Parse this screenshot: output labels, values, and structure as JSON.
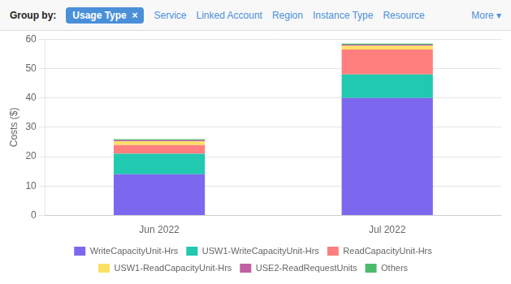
{
  "chart_data": {
    "type": "bar",
    "stacked": true,
    "categories": [
      "Jun 2022",
      "Jul 2022"
    ],
    "series": [
      {
        "name": "WriteCapacityUnit-Hrs",
        "color": "#7b68ee",
        "values": [
          14.0,
          40.0
        ]
      },
      {
        "name": "USW1-WriteCapacityUnit-Hrs",
        "color": "#20c9b0",
        "values": [
          7.0,
          8.0
        ]
      },
      {
        "name": "ReadCapacityUnit-Hrs",
        "color": "#ff7f7f",
        "values": [
          3.0,
          8.5
        ]
      },
      {
        "name": "USW1-ReadCapacityUnit-Hrs",
        "color": "#ffe066",
        "values": [
          1.2,
          1.2
        ]
      },
      {
        "name": "USE2-ReadRequestUnits",
        "color": "#c060a1",
        "values": [
          0.4,
          0.4
        ]
      },
      {
        "name": "Others",
        "color": "#4dbb6e",
        "values": [
          0.4,
          0.4
        ]
      }
    ],
    "ylabel": "Costs ($)",
    "ylim": [
      0,
      60
    ],
    "yticks": [
      0,
      10,
      20,
      30,
      40,
      50,
      60
    ],
    "grid": true,
    "legend": "bottom",
    "annotations": [
      "Group by:",
      "Usage Type  ×",
      "Service",
      "Linked Account",
      "Region",
      "Instance Type",
      "Resource",
      "More ▾"
    ]
  }
}
